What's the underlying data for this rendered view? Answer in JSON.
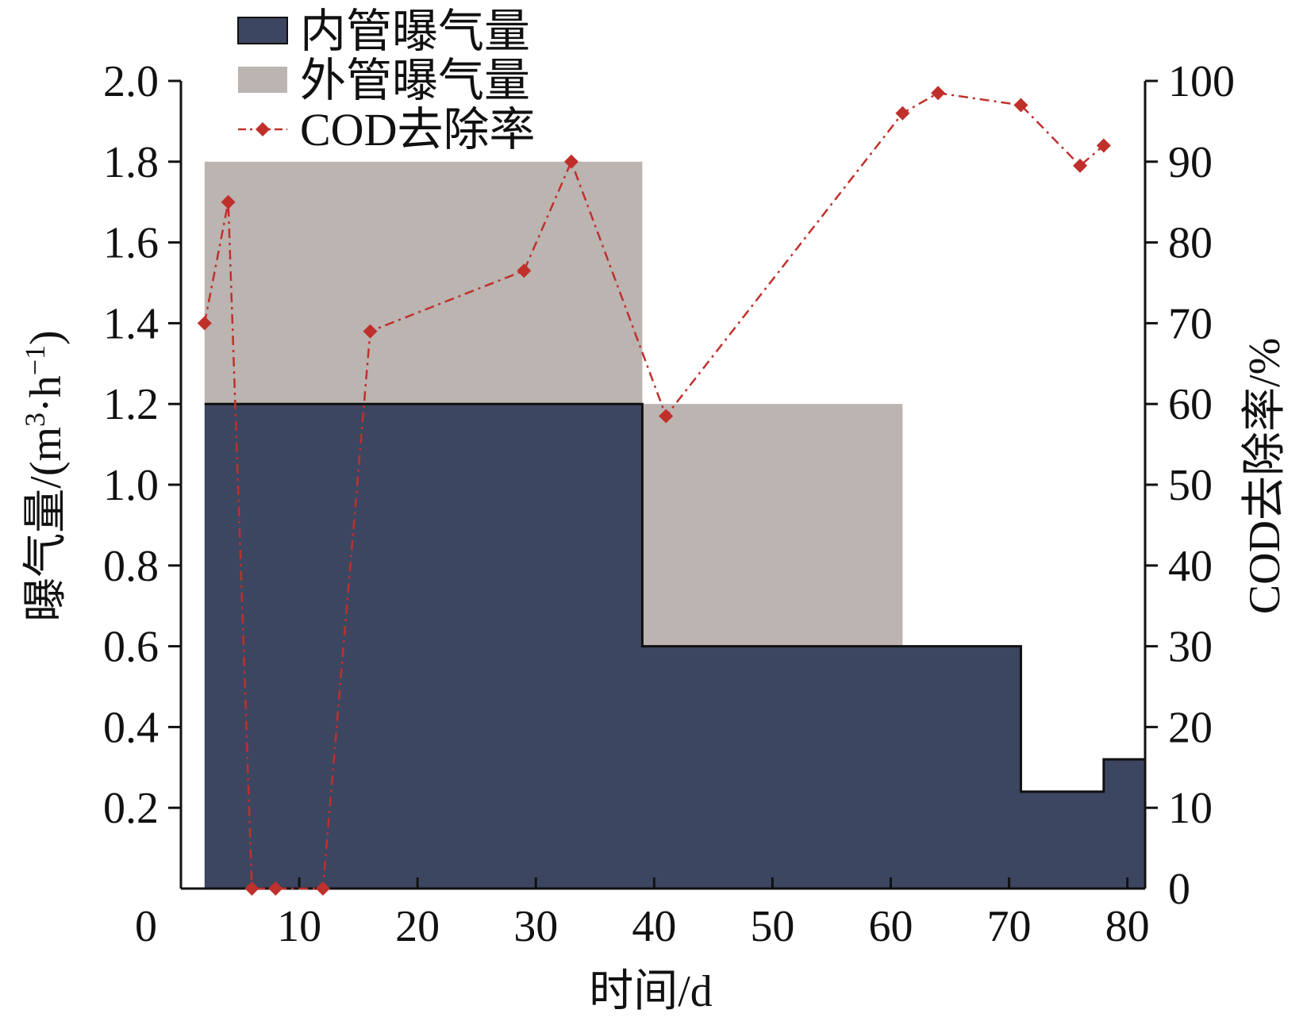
{
  "chart_data": {
    "type": "area",
    "x_axis": {
      "label": "时间/d",
      "range": [
        0,
        81.5
      ],
      "ticks": [
        0,
        10,
        20,
        30,
        40,
        50,
        60,
        70,
        80
      ],
      "tick_labels": [
        "0",
        "10",
        "20",
        "30",
        "40",
        "50",
        "60",
        "70",
        "80"
      ]
    },
    "y_axis_left": {
      "label": "曝气量/(m³·h⁻¹)",
      "label_parts": [
        "曝气量/(m",
        "3",
        "·h",
        "−1",
        ")"
      ],
      "range": [
        0,
        2.0
      ],
      "ticks": [
        0.2,
        0.4,
        0.6,
        0.8,
        1.0,
        1.2,
        1.4,
        1.6,
        1.8,
        2.0
      ],
      "tick_labels": [
        "0.2",
        "0.4",
        "0.6",
        "0.8",
        "1.0",
        "1.2",
        "1.4",
        "1.6",
        "1.8",
        "2.0"
      ]
    },
    "y_axis_right": {
      "label": "COD去除率/%",
      "range": [
        0,
        100
      ],
      "ticks": [
        0,
        10,
        20,
        30,
        40,
        50,
        60,
        70,
        80,
        90,
        100
      ],
      "tick_labels": [
        "0",
        "10",
        "20",
        "30",
        "40",
        "50",
        "60",
        "70",
        "80",
        "90",
        "100"
      ]
    },
    "series": [
      {
        "name": "外管曝气量",
        "kind": "step-area",
        "axis": "left",
        "color": "#bbb4b1",
        "steps": [
          {
            "x0": 2,
            "x1": 39,
            "y": 1.8
          },
          {
            "x0": 39,
            "x1": 61,
            "y": 1.2
          }
        ]
      },
      {
        "name": "内管曝气量",
        "kind": "step-area",
        "axis": "left",
        "color": "#3c4660",
        "steps": [
          {
            "x0": 2,
            "x1": 39,
            "y": 1.2
          },
          {
            "x0": 39,
            "x1": 71,
            "y": 0.6
          },
          {
            "x0": 71,
            "x1": 78,
            "y": 0.24
          },
          {
            "x0": 78,
            "x1": 81.5,
            "y": 0.32
          }
        ]
      },
      {
        "name": "COD去除率",
        "kind": "line",
        "axis": "right",
        "color": "#c0302b",
        "marker": "diamond",
        "line_style": "dash-dot",
        "x": [
          2,
          4,
          6,
          8,
          12,
          16,
          29,
          33,
          41,
          61,
          64,
          71,
          76,
          78
        ],
        "y": [
          70,
          85,
          0,
          0,
          0,
          69,
          76.5,
          90,
          58.5,
          96,
          98.5,
          97,
          89.5,
          92
        ]
      }
    ],
    "legend": {
      "position": "top-left",
      "entries": [
        "内管曝气量",
        "外管曝气量",
        "COD去除率"
      ]
    },
    "grid": false
  }
}
